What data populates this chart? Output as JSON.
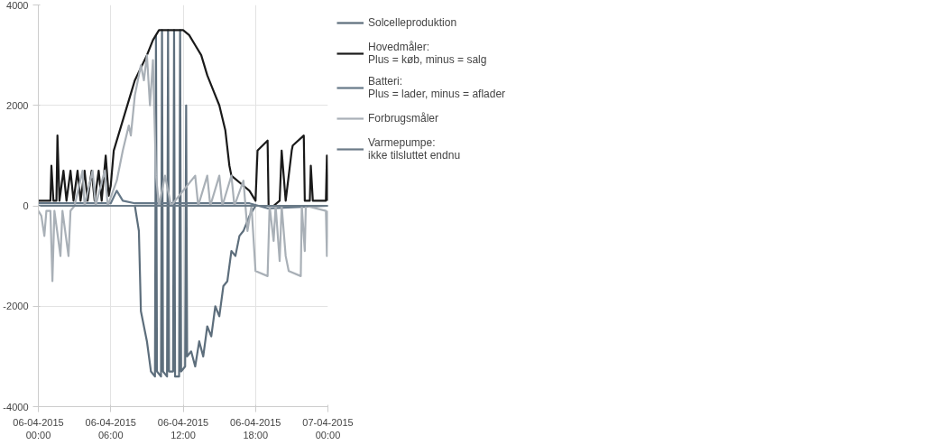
{
  "chart_data": {
    "type": "line",
    "ylim": [
      -4000,
      4000
    ],
    "yticks": [
      -4000,
      -2000,
      0,
      2000,
      4000
    ],
    "xlim": [
      "2015-04-06T00:00",
      "2015-04-07T00:00"
    ],
    "xticks": [
      {
        "value": "2015-04-06T00:00",
        "label": "06-04-2015\n00:00"
      },
      {
        "value": "2015-04-06T06:00",
        "label": "06-04-2015\n06:00"
      },
      {
        "value": "2015-04-06T12:00",
        "label": "06-04-2015\n12:00"
      },
      {
        "value": "2015-04-06T18:00",
        "label": "06-04-2015\n18:00"
      },
      {
        "value": "2015-04-07T00:00",
        "label": "07-04-2015\n00:00"
      }
    ],
    "grid": true,
    "legend": "right",
    "line_style": "solid",
    "marker": "none",
    "series": [
      {
        "name": "Solcelleproduktion",
        "color": "#5d6e7c",
        "x": [
          "2015-04-06T00:00",
          "2015-04-06T08:00",
          "2015-04-06T08:20",
          "2015-04-06T08:30",
          "2015-04-06T09:00",
          "2015-04-06T09:20",
          "2015-04-06T09:40",
          "2015-04-06T09:45",
          "2015-04-06T09:50",
          "2015-04-06T10:10",
          "2015-04-06T10:15",
          "2015-04-06T10:20",
          "2015-04-06T10:40",
          "2015-04-06T10:45",
          "2015-04-06T10:50",
          "2015-04-06T11:10",
          "2015-04-06T11:15",
          "2015-04-06T11:20",
          "2015-04-06T11:40",
          "2015-04-06T11:45",
          "2015-04-06T11:50",
          "2015-04-06T12:10",
          "2015-04-06T12:15",
          "2015-04-06T12:20",
          "2015-04-06T12:40",
          "2015-04-06T13:00",
          "2015-04-06T13:20",
          "2015-04-06T13:40",
          "2015-04-06T14:00",
          "2015-04-06T14:20",
          "2015-04-06T14:40",
          "2015-04-06T15:00",
          "2015-04-06T15:20",
          "2015-04-06T15:40",
          "2015-04-06T16:00",
          "2015-04-06T16:20",
          "2015-04-06T16:40",
          "2015-04-06T17:00",
          "2015-04-06T17:30",
          "2015-04-06T18:00",
          "2015-04-07T00:00"
        ],
        "values": [
          0,
          0,
          -500,
          -2100,
          -2700,
          -3300,
          -3400,
          3400,
          -3300,
          -3400,
          3500,
          -3300,
          -3400,
          3500,
          -3300,
          -3300,
          3500,
          -3400,
          -3400,
          3500,
          -3300,
          -3200,
          2000,
          -3000,
          -2900,
          -3200,
          -2700,
          -3000,
          -2400,
          -2600,
          -2000,
          -2200,
          -1600,
          -1500,
          -900,
          -1000,
          -600,
          -500,
          -200,
          0,
          0
        ]
      },
      {
        "name": "Hovedmåler:\nPlus = køb, minus = salg",
        "color": "#1a1a1a",
        "x": [
          "2015-04-06T00:00",
          "2015-04-06T01:00",
          "2015-04-06T01:05",
          "2015-04-06T01:15",
          "2015-04-06T01:30",
          "2015-04-06T01:35",
          "2015-04-06T01:45",
          "2015-04-06T02:05",
          "2015-04-06T02:20",
          "2015-04-06T02:40",
          "2015-04-06T02:55",
          "2015-04-06T03:15",
          "2015-04-06T03:30",
          "2015-04-06T03:50",
          "2015-04-06T04:05",
          "2015-04-06T04:25",
          "2015-04-06T04:40",
          "2015-04-06T05:00",
          "2015-04-06T05:15",
          "2015-04-06T05:35",
          "2015-04-06T05:50",
          "2015-04-06T06:00",
          "2015-04-06T06:15",
          "2015-04-06T07:00",
          "2015-04-06T08:00",
          "2015-04-06T09:00",
          "2015-04-06T09:30",
          "2015-04-06T10:00",
          "2015-04-06T11:00",
          "2015-04-06T12:00",
          "2015-04-06T12:30",
          "2015-04-06T13:00",
          "2015-04-06T13:30",
          "2015-04-06T14:00",
          "2015-04-06T14:30",
          "2015-04-06T15:00",
          "2015-04-06T15:30",
          "2015-04-06T15:50",
          "2015-04-06T16:00",
          "2015-04-06T17:00",
          "2015-04-06T17:30",
          "2015-04-06T18:00",
          "2015-04-06T18:10",
          "2015-04-06T19:00",
          "2015-04-06T19:05",
          "2015-04-06T19:30",
          "2015-04-06T20:00",
          "2015-04-06T20:10",
          "2015-04-06T20:30",
          "2015-04-06T21:00",
          "2015-04-06T21:05",
          "2015-04-06T22:00",
          "2015-04-06T22:05",
          "2015-04-06T22:30",
          "2015-04-06T22:35",
          "2015-04-06T22:45",
          "2015-04-06T23:50",
          "2015-04-06T23:55",
          "2015-04-07T00:00"
        ],
        "values": [
          100,
          100,
          800,
          100,
          100,
          1400,
          100,
          700,
          100,
          700,
          100,
          700,
          100,
          700,
          100,
          700,
          100,
          700,
          100,
          1000,
          200,
          400,
          1100,
          1700,
          2500,
          3000,
          3300,
          3500,
          3500,
          3500,
          3400,
          3200,
          3000,
          2600,
          2300,
          2000,
          1500,
          800,
          600,
          400,
          300,
          100,
          1100,
          1300,
          0,
          0,
          100,
          1100,
          100,
          1100,
          1200,
          1400,
          100,
          100,
          800,
          100,
          100,
          1000,
          100
        ]
      },
      {
        "name": "Batteri:\nPlus = lader, minus = aflader",
        "color": "#667888",
        "x": [
          "2015-04-06T00:00",
          "2015-04-06T06:00",
          "2015-04-06T06:30",
          "2015-04-06T07:00",
          "2015-04-06T08:00",
          "2015-04-06T17:30",
          "2015-04-06T19:00",
          "2015-04-07T00:00"
        ],
        "values": [
          50,
          50,
          300,
          100,
          50,
          50,
          -50,
          0
        ]
      },
      {
        "name": "Forbrugsmåler",
        "color": "#a9b0b7",
        "x": [
          "2015-04-06T00:00",
          "2015-04-06T00:15",
          "2015-04-06T00:30",
          "2015-04-06T00:40",
          "2015-04-06T01:00",
          "2015-04-06T01:10",
          "2015-04-06T01:20",
          "2015-04-06T01:50",
          "2015-04-06T02:00",
          "2015-04-06T02:30",
          "2015-04-06T02:40",
          "2015-04-06T03:00",
          "2015-04-06T03:40",
          "2015-04-06T03:50",
          "2015-04-06T04:30",
          "2015-04-06T04:45",
          "2015-04-06T05:30",
          "2015-04-06T05:45",
          "2015-04-06T06:30",
          "2015-04-06T07:00",
          "2015-04-06T07:30",
          "2015-04-06T07:40",
          "2015-04-06T08:00",
          "2015-04-06T08:30",
          "2015-04-06T08:45",
          "2015-04-06T09:00",
          "2015-04-06T09:15",
          "2015-04-06T09:30",
          "2015-04-06T09:45",
          "2015-04-06T10:00",
          "2015-04-06T10:30",
          "2015-04-06T11:00",
          "2015-04-06T13:00",
          "2015-04-06T13:15",
          "2015-04-06T14:00",
          "2015-04-06T14:15",
          "2015-04-06T15:00",
          "2015-04-06T15:15",
          "2015-04-06T16:00",
          "2015-04-06T16:15",
          "2015-04-06T17:00",
          "2015-04-06T17:20",
          "2015-04-06T17:40",
          "2015-04-06T18:00",
          "2015-04-06T19:00",
          "2015-04-06T19:10",
          "2015-04-06T19:30",
          "2015-04-06T19:40",
          "2015-04-06T20:00",
          "2015-04-06T20:10",
          "2015-04-06T20:30",
          "2015-04-06T20:45",
          "2015-04-06T21:45",
          "2015-04-06T21:50",
          "2015-04-06T22:05",
          "2015-04-06T22:10",
          "2015-04-06T23:50",
          "2015-04-06T23:55",
          "2015-04-07T00:00"
        ],
        "values": [
          -100,
          -200,
          -600,
          -100,
          -100,
          -1500,
          -100,
          -1000,
          -100,
          -1000,
          -100,
          0,
          700,
          0,
          700,
          0,
          700,
          0,
          500,
          1100,
          1600,
          1400,
          2200,
          2800,
          2500,
          3000,
          2000,
          2900,
          600,
          0,
          600,
          0,
          600,
          0,
          600,
          0,
          600,
          0,
          600,
          0,
          500,
          -500,
          0,
          -1300,
          -1400,
          0,
          -700,
          0,
          -1100,
          0,
          -1000,
          -1300,
          -1400,
          0,
          -900,
          0,
          -100,
          -1000,
          -100
        ]
      },
      {
        "name": "Varmepumpe:\nikke tilsluttet endnu",
        "color": "#6b7b88",
        "x": [
          "2015-04-06T00:00",
          "2015-04-07T00:00"
        ],
        "values": [
          0,
          0
        ]
      }
    ]
  }
}
